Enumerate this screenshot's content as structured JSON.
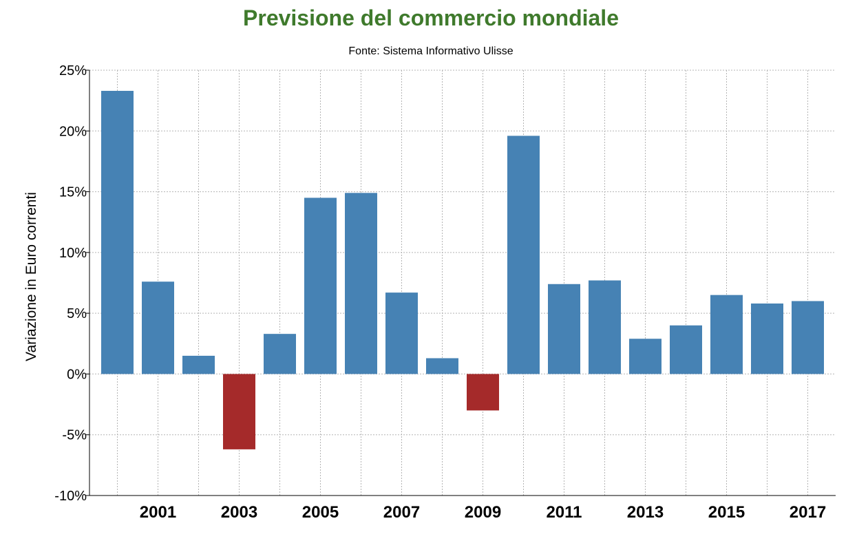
{
  "chart_data": {
    "type": "bar",
    "title": "Previsione del commercio mondiale",
    "subtitle": "Fonte: Sistema Informativo Ulisse",
    "xlabel": "",
    "ylabel": "Variazione in Euro correnti",
    "x": [
      2000,
      2001,
      2002,
      2003,
      2004,
      2005,
      2006,
      2007,
      2008,
      2009,
      2010,
      2011,
      2012,
      2013,
      2014,
      2015,
      2016,
      2017
    ],
    "values": [
      23.3,
      7.6,
      1.5,
      -6.2,
      3.3,
      14.5,
      14.9,
      6.7,
      1.3,
      -3.0,
      19.6,
      7.4,
      7.7,
      2.9,
      4.0,
      6.5,
      5.8,
      6.0
    ],
    "x_tick_labels": [
      "2001",
      "2003",
      "2005",
      "2007",
      "2009",
      "2011",
      "2013",
      "2015",
      "2017"
    ],
    "y_tick_labels": [
      "-10%",
      "-5%",
      "0%",
      "5%",
      "10%",
      "15%",
      "20%",
      "25%"
    ],
    "ylim": [
      -10,
      25
    ],
    "y_ticks": [
      -10,
      -5,
      0,
      5,
      10,
      15,
      20,
      25
    ],
    "grid": true,
    "colors": {
      "positive": "#4682b4",
      "negative": "#a52a2a",
      "title": "#3f7a2c",
      "grid": "#b3b3b3",
      "axis": "#000000"
    }
  }
}
